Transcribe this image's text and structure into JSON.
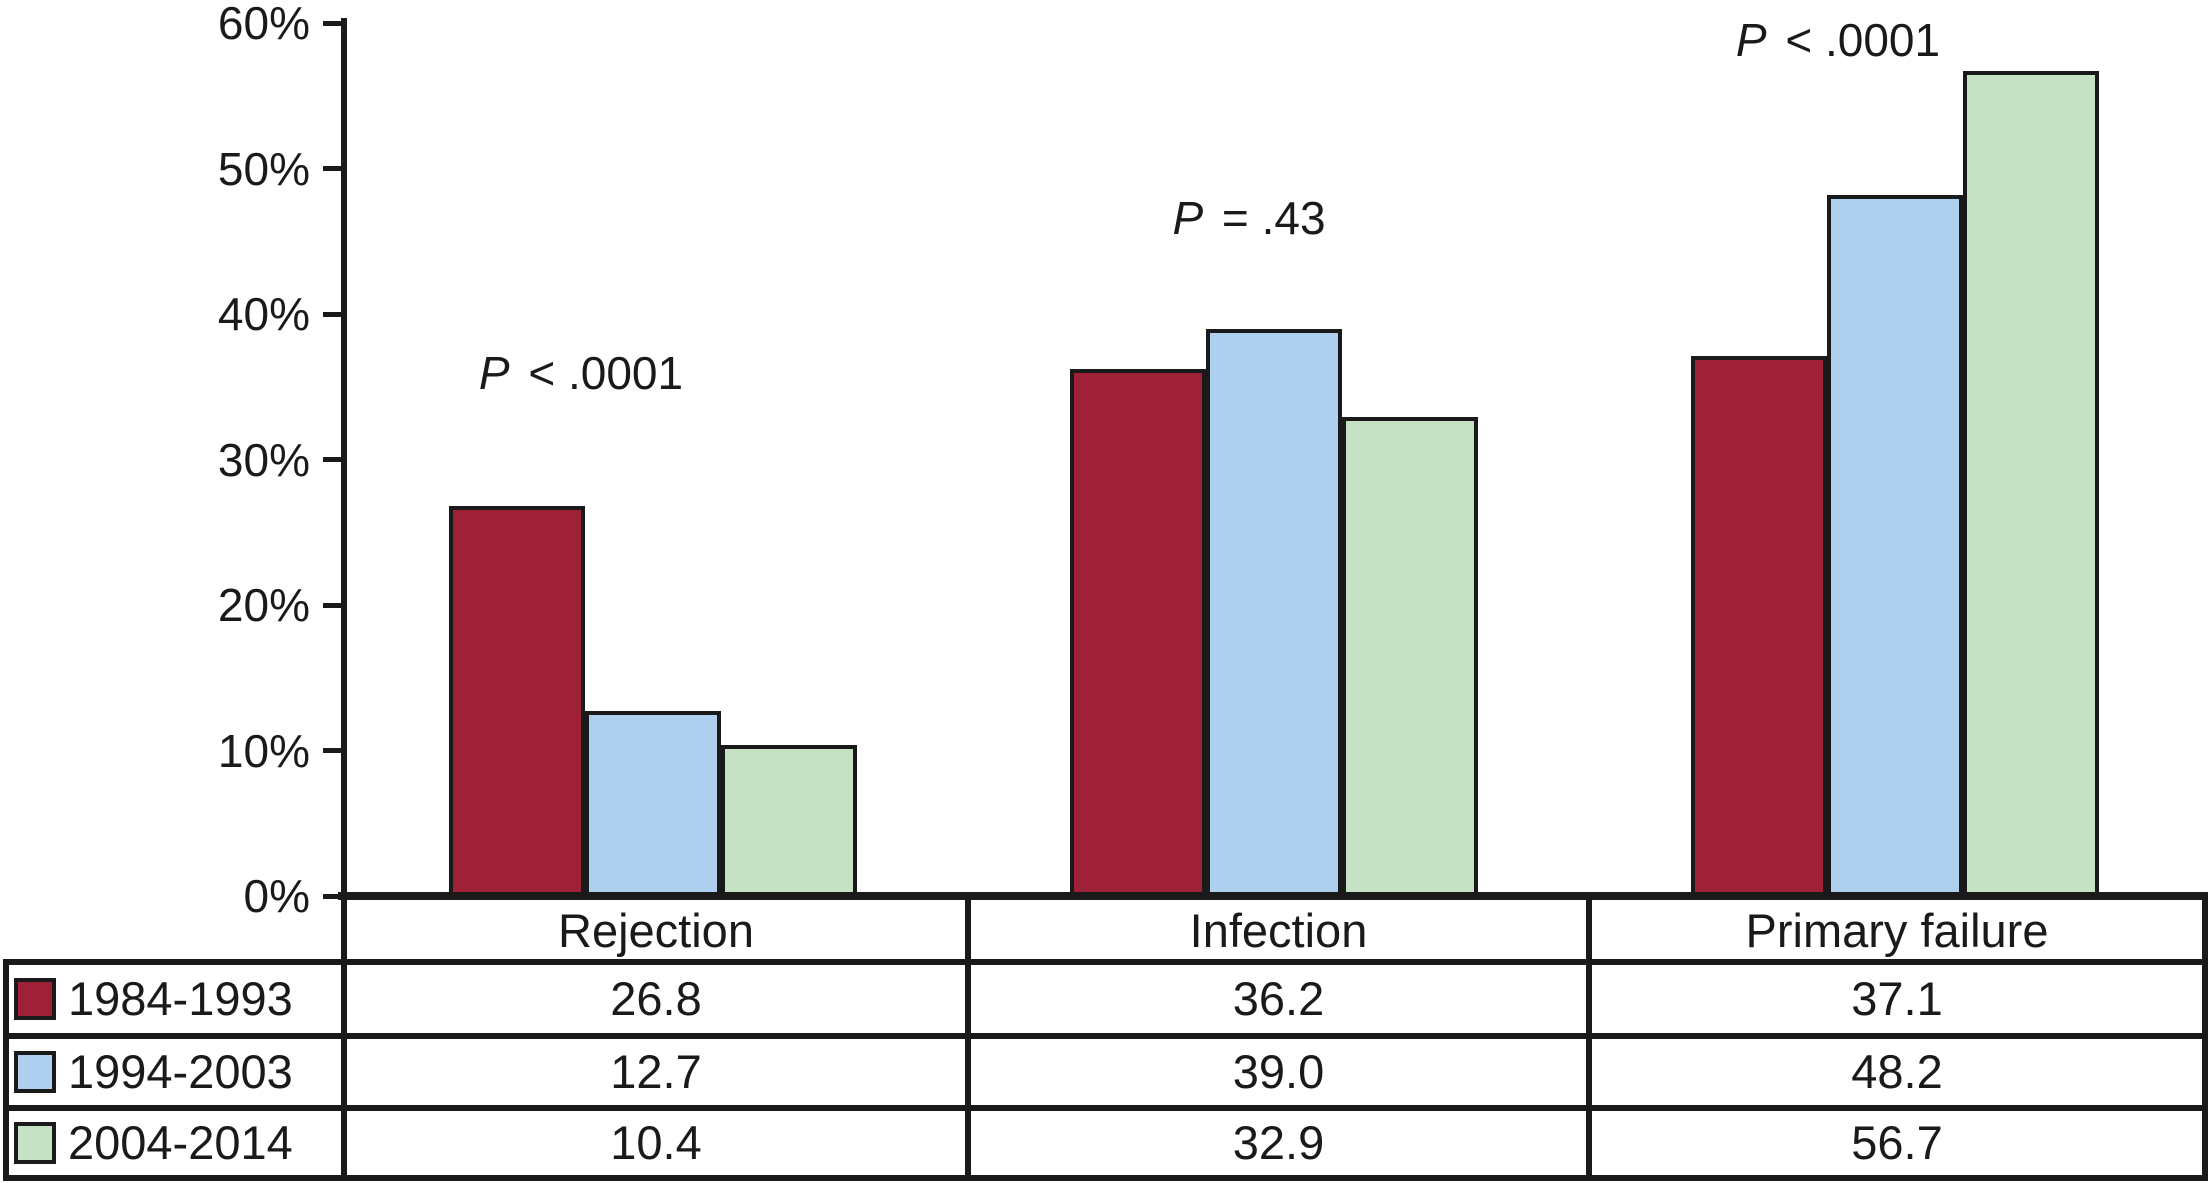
{
  "chart_data": {
    "type": "bar",
    "categories": [
      "Rejection",
      "Infection",
      "Primary failure"
    ],
    "series": [
      {
        "name": "1984-1993",
        "color": "#9E2137",
        "values": [
          26.8,
          36.2,
          37.1
        ]
      },
      {
        "name": "1994-2003",
        "color": "#AECFED",
        "values": [
          12.7,
          39.0,
          48.2
        ]
      },
      {
        "name": "2004-2014",
        "color": "#C5E2C5",
        "values": [
          10.4,
          32.9,
          56.7
        ]
      }
    ],
    "annotations": [
      {
        "category": "Rejection",
        "text": "P < .0001"
      },
      {
        "category": "Infection",
        "text": "P = .43"
      },
      {
        "category": "Primary failure",
        "text": "P < .0001"
      }
    ],
    "y_axis": {
      "tick_labels": [
        "60%",
        "50%",
        "40%",
        "30%",
        "20%",
        "10%",
        "0%"
      ],
      "tick_values": [
        60,
        50,
        40,
        30,
        20,
        10,
        0
      ],
      "ylim": [
        0,
        60
      ],
      "grid": "off"
    },
    "legend_position": "table-left",
    "title": "",
    "xlabel": "",
    "ylabel": ""
  },
  "table": {
    "header": [
      "Rejection",
      "Infection",
      "Primary failure"
    ],
    "rows": [
      {
        "label": "1984-1993",
        "values": [
          "26.8",
          "36.2",
          "37.1"
        ]
      },
      {
        "label": "1994-2003",
        "values": [
          "12.7",
          "39.0",
          "48.2"
        ]
      },
      {
        "label": "2004-2014",
        "values": [
          "10.4",
          "32.9",
          "56.7"
        ]
      }
    ]
  },
  "colors": {
    "line": "#1a1a1a",
    "background": "#ffffff",
    "series_1984_1993": "#9E2137",
    "series_1994_2003": "#AECFED",
    "series_2004_2014": "#C5E2C5"
  }
}
